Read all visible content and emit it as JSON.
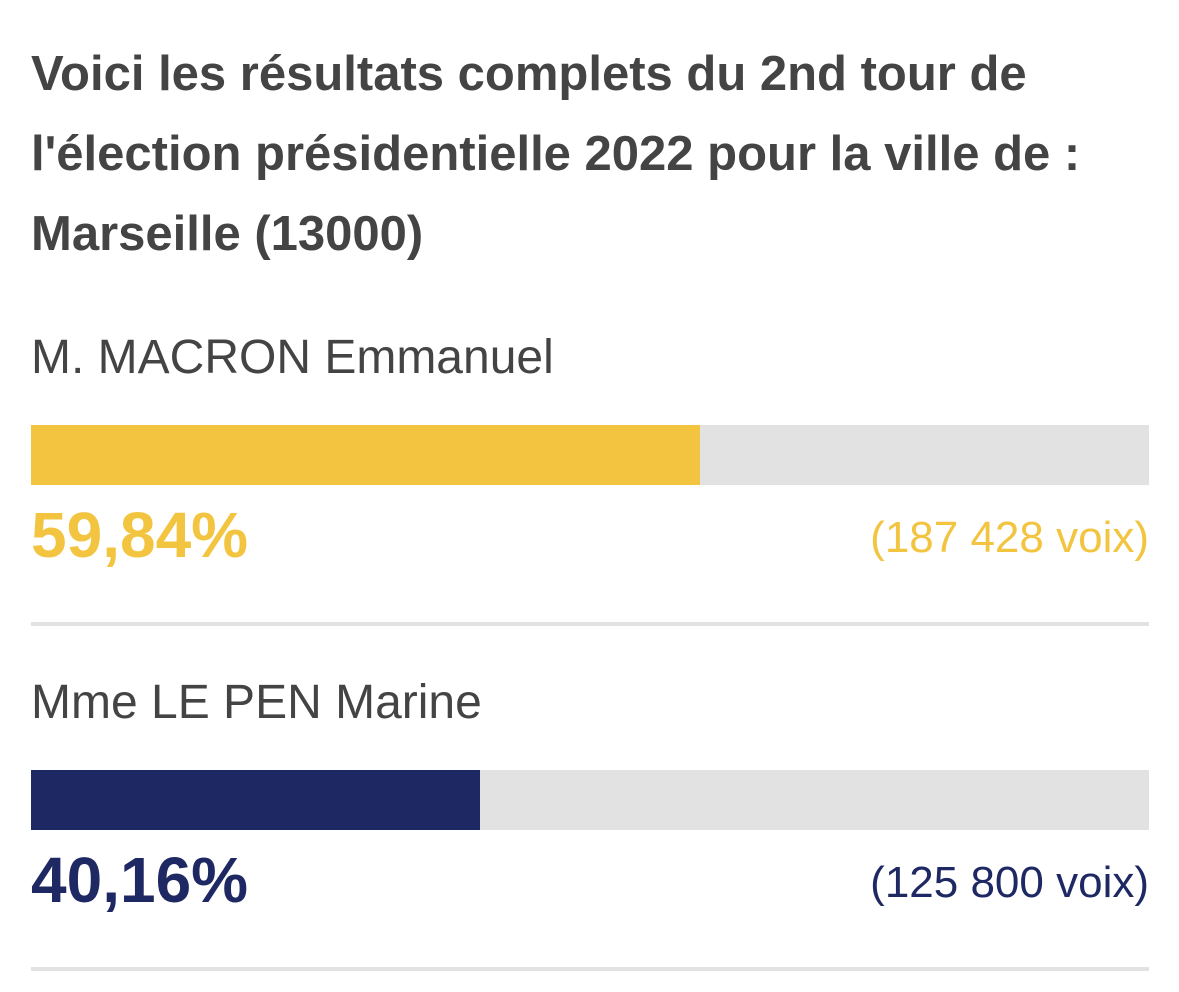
{
  "header": {
    "title": "Voici les résultats complets du 2nd tour de l'élection présidentielle 2022 pour la ville de : Marseille (13000)"
  },
  "chart_data": {
    "type": "bar",
    "title": "Voici les résultats complets du 2nd tour de l'élection présidentielle 2022 pour la ville de : Marseille (13000)",
    "categories": [
      "M. MACRON Emmanuel",
      "Mme LE PEN Marine"
    ],
    "values": [
      59.84,
      40.16
    ],
    "unit": "%",
    "xlim": [
      0,
      100
    ],
    "grid": false,
    "legend": "none"
  },
  "candidates": [
    {
      "name": "M. MACRON Emmanuel",
      "percent": 59.84,
      "percent_label": "59,84%",
      "votes_label": "(187 428 voix)",
      "color": "#f2c440"
    },
    {
      "name": "Mme LE PEN Marine",
      "percent": 40.16,
      "percent_label": "40,16%",
      "votes_label": "(125 800 voix)",
      "color": "#1e2862"
    }
  ],
  "colors": {
    "track": "#e2e2e2",
    "text": "#444444"
  }
}
